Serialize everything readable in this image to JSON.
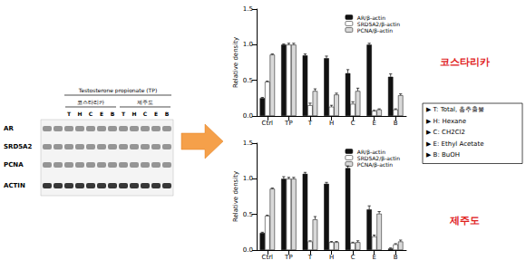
{
  "chart_data": [
    {
      "type": "bar",
      "annotations": [
        "코스타리카"
      ],
      "ylabel": "Relative density",
      "categories": [
        "Ctrl",
        "TP",
        "T",
        "H",
        "C",
        "E",
        "B"
      ],
      "series": [
        {
          "name": "AR/β-actin",
          "color": "#111111",
          "values": [
            0.25,
            1.0,
            0.85,
            0.81,
            0.6,
            1.0,
            0.55
          ],
          "errors": [
            0.01,
            0.01,
            0.02,
            0.03,
            0.05,
            0.02,
            0.04
          ]
        },
        {
          "name": "SRD5A2/β-actin",
          "color": "#ffffff",
          "values": [
            0.48,
            1.0,
            0.15,
            0.13,
            0.17,
            0.07,
            0.09
          ],
          "errors": [
            0.01,
            0.02,
            0.03,
            0.02,
            0.03,
            0.01,
            0.01
          ]
        },
        {
          "name": "PCNA/β-actin",
          "color": "#d9d9d9",
          "values": [
            0.86,
            1.0,
            0.35,
            0.3,
            0.35,
            0.09,
            0.29
          ],
          "errors": [
            0.01,
            0.02,
            0.03,
            0.02,
            0.04,
            0.01,
            0.02
          ]
        }
      ],
      "ylim": [
        0,
        1.5
      ],
      "yticks": [
        {
          "value": 0,
          "label": "0.0"
        },
        0.5,
        {
          "value": 1,
          "label": "1.0"
        },
        1.5
      ],
      "grid": false,
      "legend": "upper right"
    },
    {
      "type": "bar",
      "annotations": [
        "제주도"
      ],
      "ylabel": "Relative density",
      "categories": [
        "Ctrl",
        "TP",
        "T",
        "H",
        "C",
        "E",
        "B"
      ],
      "series": [
        {
          "name": "AR/β-actin",
          "color": "#111111",
          "values": [
            0.24,
            1.0,
            1.07,
            0.93,
            1.15,
            0.57,
            0.02
          ],
          "errors": [
            0.01,
            0.03,
            0.02,
            0.02,
            0.03,
            0.05,
            0.01
          ]
        },
        {
          "name": "SRD5A2/β-actin",
          "color": "#ffffff",
          "values": [
            0.48,
            1.0,
            0.12,
            0.11,
            0.1,
            0.19,
            0.08
          ],
          "errors": [
            0.01,
            0.02,
            0.01,
            0.01,
            0.01,
            0.02,
            0.01
          ]
        },
        {
          "name": "PCNA/β-actin",
          "color": "#d9d9d9",
          "values": [
            0.86,
            1.0,
            0.43,
            0.11,
            0.11,
            0.51,
            0.12
          ],
          "errors": [
            0.01,
            0.02,
            0.04,
            0.01,
            0.02,
            0.03,
            0.02
          ]
        }
      ],
      "ylim": [
        0,
        1.5
      ],
      "yticks": [
        {
          "value": 0,
          "label": "0.0"
        },
        0.5,
        {
          "value": 1,
          "label": "1.0"
        },
        1.5
      ],
      "grid": false,
      "legend": "upper right"
    }
  ],
  "blot": {
    "title": "Testosterone propionate (TP)",
    "groups": [
      "코스타리카",
      "제주도"
    ],
    "lanes": [
      null,
      null,
      "T",
      "H",
      "C",
      "E",
      "B",
      "T",
      "H",
      "C",
      "E",
      "B"
    ],
    "rows": [
      "AR",
      "SRD5A2",
      "PCNA",
      "ACTIN"
    ]
  },
  "key": [
    "▶ T: Total, 총추출물",
    "▶ H: Hexane",
    "▶ C: CH2Cl2",
    "▶ E: Ethyl Acetate",
    "▶ B: BuOH"
  ]
}
